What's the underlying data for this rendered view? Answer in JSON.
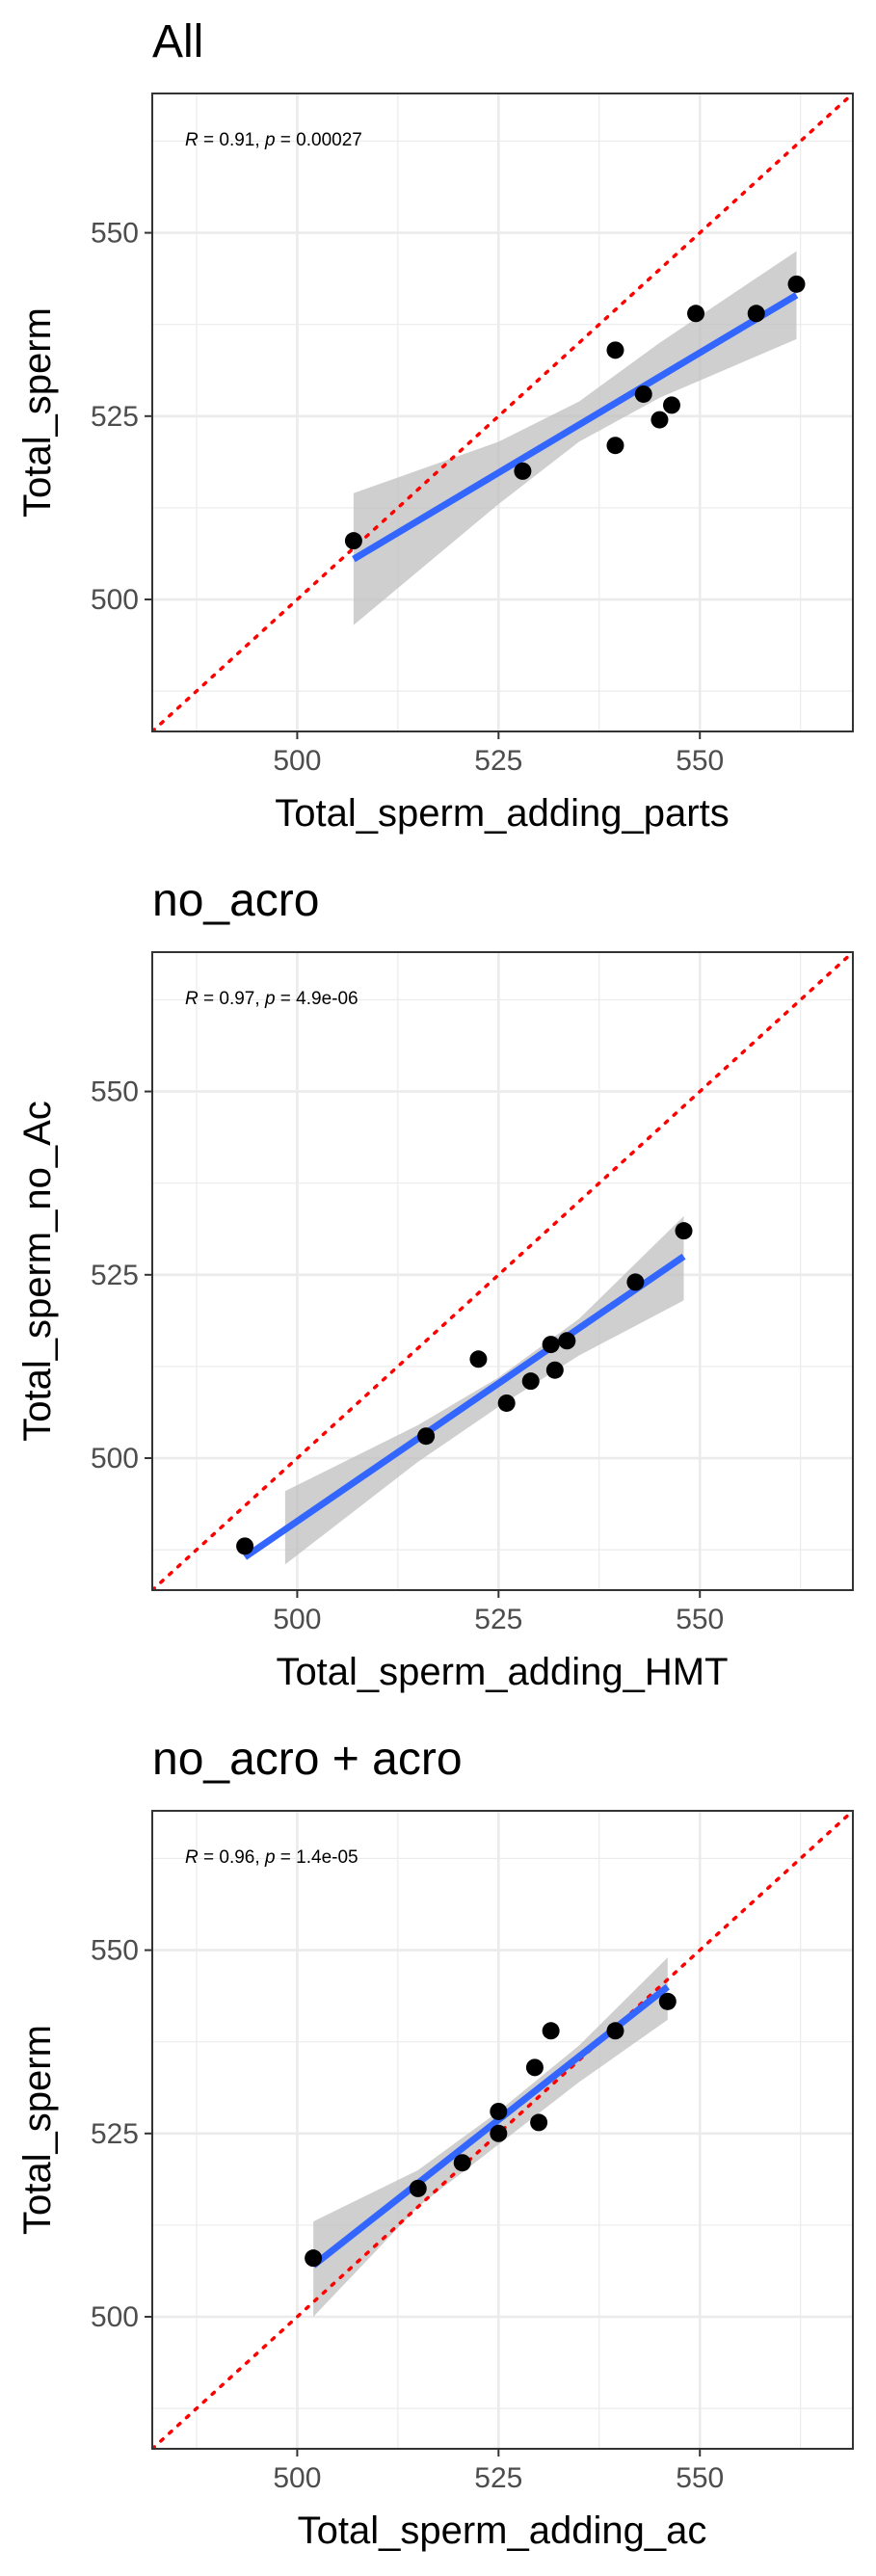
{
  "chart_data": [
    {
      "type": "scatter",
      "title": "All",
      "xlabel": "Total_sperm_adding_parts",
      "ylabel": "Total_sperm",
      "xlim": [
        482,
        569
      ],
      "ylim": [
        482,
        569
      ],
      "xticks": [
        "500",
        "525",
        "550"
      ],
      "yticks": [
        "500",
        "525",
        "550"
      ],
      "xtick_values": [
        500,
        525,
        550
      ],
      "ytick_values": [
        500,
        525,
        550
      ],
      "annotation": {
        "r_label": "R",
        "r_value": " = 0.91, ",
        "p_label": "p",
        "p_value": " = 0.00027"
      },
      "points": [
        {
          "x": 507,
          "y": 508
        },
        {
          "x": 528,
          "y": 517.5
        },
        {
          "x": 539.5,
          "y": 534
        },
        {
          "x": 539.5,
          "y": 521
        },
        {
          "x": 543,
          "y": 528
        },
        {
          "x": 545,
          "y": 524.5
        },
        {
          "x": 546.5,
          "y": 526.5
        },
        {
          "x": 549.5,
          "y": 539
        },
        {
          "x": 557,
          "y": 539
        },
        {
          "x": 562,
          "y": 543
        }
      ],
      "fit": {
        "x0": 507,
        "y0": 505.5,
        "x1": 562,
        "y1": 541.5
      },
      "band": [
        {
          "x": 507,
          "lo": 496.5,
          "hi": 514.5
        },
        {
          "x": 525,
          "lo": 513,
          "hi": 521.5
        },
        {
          "x": 535,
          "lo": 521.5,
          "hi": 527
        },
        {
          "x": 545,
          "lo": 527.5,
          "hi": 535
        },
        {
          "x": 562,
          "lo": 535.5,
          "hi": 547.5
        }
      ],
      "reference_line": "y = x",
      "colors": {
        "points": "#000000",
        "fit": "#3366ff",
        "band": "#bfbfbf",
        "reference": "#ff0000",
        "grid": "#ebebeb"
      }
    },
    {
      "type": "scatter",
      "title": "no_acro",
      "xlabel": "Total_sperm_adding_HMT",
      "ylabel": "Total_sperm_no_Ac",
      "xlim": [
        482,
        569
      ],
      "ylim": [
        482,
        569
      ],
      "xticks": [
        "500",
        "525",
        "550"
      ],
      "yticks": [
        "500",
        "525",
        "550"
      ],
      "xtick_values": [
        500,
        525,
        550
      ],
      "ytick_values": [
        500,
        525,
        550
      ],
      "annotation": {
        "r_label": "R",
        "r_value": " = 0.97, ",
        "p_label": "p",
        "p_value": " = 4.9e-06"
      },
      "points": [
        {
          "x": 493.5,
          "y": 488
        },
        {
          "x": 516,
          "y": 503
        },
        {
          "x": 522.5,
          "y": 513.5
        },
        {
          "x": 526,
          "y": 507.5
        },
        {
          "x": 529,
          "y": 510.5
        },
        {
          "x": 531.5,
          "y": 515.5
        },
        {
          "x": 532,
          "y": 512
        },
        {
          "x": 533.5,
          "y": 516
        },
        {
          "x": 542,
          "y": 524
        },
        {
          "x": 548,
          "y": 531
        }
      ],
      "fit": {
        "x0": 493.5,
        "y0": 486.5,
        "x1": 548,
        "y1": 527.5
      },
      "band": [
        {
          "x": 498.5,
          "lo": 485.5,
          "hi": 495.5
        },
        {
          "x": 515,
          "lo": 499.5,
          "hi": 504.5
        },
        {
          "x": 525,
          "lo": 507,
          "hi": 511
        },
        {
          "x": 535,
          "lo": 514,
          "hi": 519
        },
        {
          "x": 548,
          "lo": 521.5,
          "hi": 533
        }
      ],
      "reference_line": "y = x",
      "colors": {
        "points": "#000000",
        "fit": "#3366ff",
        "band": "#bfbfbf",
        "reference": "#ff0000",
        "grid": "#ebebeb"
      }
    },
    {
      "type": "scatter",
      "title": "no_acro + acro",
      "xlabel": "Total_sperm_adding_ac",
      "ylabel": "Total_sperm",
      "xlim": [
        482,
        569
      ],
      "ylim": [
        482,
        569
      ],
      "xticks": [
        "500",
        "525",
        "550"
      ],
      "yticks": [
        "500",
        "525",
        "550"
      ],
      "xtick_values": [
        500,
        525,
        550
      ],
      "ytick_values": [
        500,
        525,
        550
      ],
      "annotation": {
        "r_label": "R",
        "r_value": " = 0.96, ",
        "p_label": "p",
        "p_value": " = 1.4e-05"
      },
      "points": [
        {
          "x": 502,
          "y": 508
        },
        {
          "x": 515,
          "y": 517.5
        },
        {
          "x": 520.5,
          "y": 521
        },
        {
          "x": 525,
          "y": 528
        },
        {
          "x": 525,
          "y": 525
        },
        {
          "x": 529.5,
          "y": 534
        },
        {
          "x": 530,
          "y": 526.5
        },
        {
          "x": 531.5,
          "y": 539
        },
        {
          "x": 539.5,
          "y": 539
        },
        {
          "x": 546,
          "y": 543
        }
      ],
      "fit": {
        "x0": 502,
        "y0": 507,
        "x1": 546,
        "y1": 545
      },
      "band": [
        {
          "x": 502,
          "lo": 500,
          "hi": 513
        },
        {
          "x": 515,
          "lo": 515,
          "hi": 520
        },
        {
          "x": 525,
          "lo": 523.5,
          "hi": 528
        },
        {
          "x": 535,
          "lo": 532,
          "hi": 537
        },
        {
          "x": 546,
          "lo": 540.5,
          "hi": 549
        }
      ],
      "reference_line": "y = x",
      "colors": {
        "points": "#000000",
        "fit": "#3366ff",
        "band": "#bfbfbf",
        "reference": "#ff0000",
        "grid": "#ebebeb"
      }
    }
  ]
}
